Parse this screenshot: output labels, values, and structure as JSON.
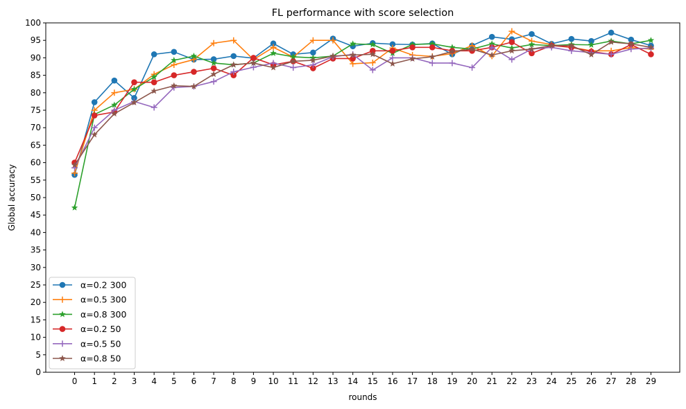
{
  "chart_data": {
    "type": "line",
    "title": "FL performance with score selection",
    "xlabel": "rounds",
    "ylabel": "Global accuracy",
    "x": [
      0,
      1,
      2,
      3,
      4,
      5,
      6,
      7,
      8,
      9,
      10,
      11,
      12,
      13,
      14,
      15,
      16,
      17,
      18,
      19,
      20,
      21,
      22,
      23,
      24,
      25,
      26,
      27,
      28,
      29
    ],
    "xlim": [
      -1.45,
      30.45
    ],
    "ylim": [
      0,
      100
    ],
    "yticks": [
      0,
      5,
      10,
      15,
      20,
      25,
      30,
      35,
      40,
      45,
      50,
      55,
      60,
      65,
      70,
      75,
      80,
      85,
      90,
      95,
      100
    ],
    "grid": false,
    "legend_position": "lower-left",
    "series": [
      {
        "name": "α=0.2 300",
        "color": "#1f77b4",
        "marker": "circle",
        "values": [
          56.5,
          77.3,
          83.5,
          78.5,
          91.0,
          91.7,
          89.5,
          89.6,
          90.5,
          89.9,
          94.1,
          91.0,
          91.5,
          95.5,
          93.3,
          94.2,
          93.9,
          93.8,
          94.1,
          91.0,
          93.5,
          96.0,
          95.3,
          96.8,
          94.0,
          95.4,
          94.8,
          97.2,
          95.2,
          93.5
        ]
      },
      {
        "name": "α=0.5 300",
        "color": "#ff7f0e",
        "marker": "plus",
        "values": [
          57.0,
          75.0,
          80.0,
          81.0,
          85.3,
          88.0,
          89.5,
          94.2,
          95.0,
          89.5,
          93.0,
          90.2,
          95.0,
          95.0,
          88.3,
          88.6,
          92.8,
          90.8,
          90.4,
          91.2,
          93.5,
          90.5,
          97.6,
          94.8,
          93.8,
          93.0,
          92.0,
          92.0,
          92.9,
          92.5
        ]
      },
      {
        "name": "α=0.8 300",
        "color": "#2ca02c",
        "marker": "star",
        "values": [
          47.1,
          73.8,
          76.5,
          81.0,
          84.5,
          89.3,
          90.5,
          88.5,
          88.0,
          88.5,
          91.3,
          90.3,
          90.0,
          90.5,
          94.0,
          93.8,
          91.3,
          93.8,
          94.0,
          93.0,
          92.5,
          94.0,
          92.8,
          93.8,
          93.5,
          93.8,
          93.7,
          94.8,
          94.0,
          95.0
        ]
      },
      {
        "name": "α=0.2 50",
        "color": "#d62728",
        "marker": "circle",
        "values": [
          60.0,
          73.5,
          74.5,
          83.0,
          83.0,
          85.0,
          86.0,
          87.0,
          85.0,
          90.0,
          88.0,
          89.0,
          87.0,
          89.8,
          89.8,
          92.0,
          92.0,
          93.0,
          93.0,
          92.0,
          92.0,
          93.0,
          94.5,
          91.3,
          93.5,
          93.0,
          91.8,
          91.0,
          93.8,
          91.0
        ]
      },
      {
        "name": "α=0.5 50",
        "color": "#9467bd",
        "marker": "plus",
        "values": [
          58.5,
          70.0,
          75.0,
          77.5,
          75.8,
          81.5,
          81.8,
          83.2,
          86.0,
          87.3,
          88.5,
          87.2,
          88.0,
          90.3,
          91.0,
          86.5,
          90.0,
          90.0,
          88.5,
          88.5,
          87.2,
          93.0,
          89.5,
          92.5,
          93.0,
          92.0,
          91.5,
          91.0,
          92.5,
          92.8
        ]
      },
      {
        "name": "α=0.8 50",
        "color": "#8c564b",
        "marker": "star",
        "values": [
          59.3,
          68.0,
          74.0,
          77.2,
          80.5,
          82.0,
          81.8,
          85.3,
          88.0,
          88.5,
          87.2,
          89.0,
          89.3,
          90.5,
          90.8,
          91.0,
          88.3,
          89.7,
          90.3,
          91.8,
          92.5,
          90.8,
          92.0,
          92.5,
          93.5,
          93.5,
          90.9,
          94.5,
          94.0,
          93.0
        ]
      }
    ]
  }
}
